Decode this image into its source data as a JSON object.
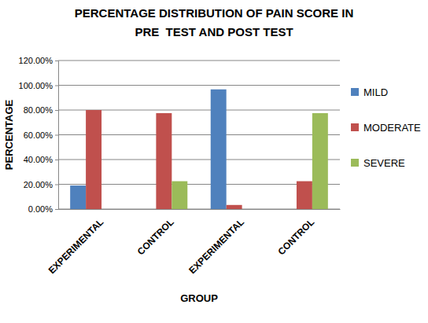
{
  "chart_data": {
    "type": "bar",
    "title": "PERCENTAGE DISTRIBUTION OF PAIN SCORE IN\nPRE  TEST AND POST TEST",
    "x_label": "GROUP",
    "y_label": "PERCENTAGE",
    "categories": [
      "EXPERIMENTAL",
      "CONTROL",
      "EXPERIMENTAL",
      "CONTROL"
    ],
    "series": [
      {
        "name": "MILD",
        "color": "#4f81bd",
        "values": [
          19,
          0,
          96.7,
          0
        ]
      },
      {
        "name": "MODERATE",
        "color": "#c0504d",
        "values": [
          80,
          77.5,
          3.3,
          22.5
        ]
      },
      {
        "name": "SEVERE",
        "color": "#9bbb59",
        "values": [
          0,
          22.5,
          0,
          77.5
        ]
      }
    ],
    "ylim": [
      0,
      120
    ],
    "yticks": [
      {
        "value": 0,
        "label": "0.00%"
      },
      {
        "value": 20,
        "label": "20.00%"
      },
      {
        "value": 40,
        "label": "40.00%"
      },
      {
        "value": 60,
        "label": "60.00%"
      },
      {
        "value": 80,
        "label": "80.00%"
      },
      {
        "value": 100,
        "label": "100.00%"
      },
      {
        "value": 120,
        "label": "120.00%"
      }
    ],
    "grid": true,
    "legend": "right"
  }
}
